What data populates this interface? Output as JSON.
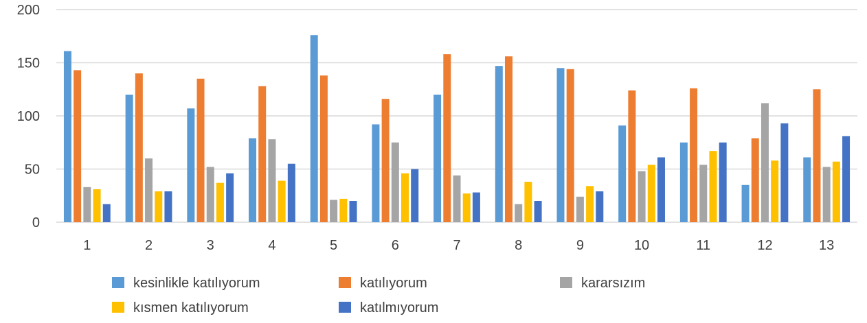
{
  "chart_data": {
    "type": "bar",
    "title": "",
    "xlabel": "",
    "ylabel": "",
    "ylim": [
      0,
      200
    ],
    "yticks": [
      0,
      50,
      100,
      150,
      200
    ],
    "grid": true,
    "legend_position": "bottom",
    "categories": [
      "1",
      "2",
      "3",
      "4",
      "5",
      "6",
      "7",
      "8",
      "9",
      "10",
      "11",
      "12",
      "13"
    ],
    "series": [
      {
        "name": "kesinlikle katılıyorum",
        "color": "#5B9BD5",
        "values": [
          161,
          120,
          107,
          79,
          176,
          92,
          120,
          147,
          145,
          91,
          75,
          35,
          61
        ]
      },
      {
        "name": "katılıyorum",
        "color": "#ED7D31",
        "values": [
          143,
          140,
          135,
          128,
          138,
          116,
          158,
          156,
          144,
          124,
          126,
          79,
          125
        ]
      },
      {
        "name": "kararsızım",
        "color": "#A5A5A5",
        "values": [
          33,
          60,
          52,
          78,
          21,
          75,
          44,
          17,
          24,
          48,
          54,
          112,
          52
        ]
      },
      {
        "name": "kısmen katılıyorum",
        "color": "#FFC000",
        "values": [
          31,
          29,
          37,
          39,
          22,
          46,
          27,
          38,
          34,
          54,
          67,
          58,
          57
        ]
      },
      {
        "name": "katılmıyorum",
        "color": "#4472C4",
        "values": [
          17,
          29,
          46,
          55,
          20,
          50,
          28,
          20,
          29,
          61,
          75,
          93,
          81
        ]
      }
    ]
  }
}
